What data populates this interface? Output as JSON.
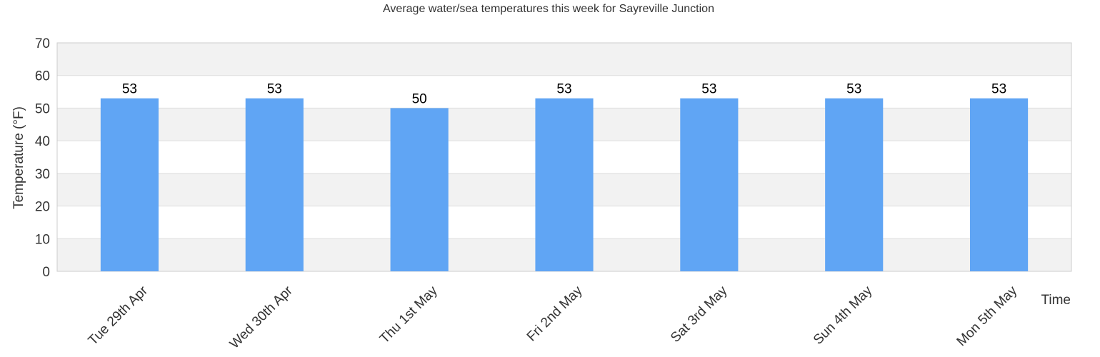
{
  "chart_data": {
    "type": "bar",
    "title": "Average water/sea temperatures this week for Sayreville Junction",
    "xlabel": "Time",
    "ylabel": "Temperature (°F)",
    "categories": [
      "Tue 29th Apr",
      "Wed 30th Apr",
      "Thu 1st May",
      "Fri 2nd May",
      "Sat 3rd May",
      "Sun 4th May",
      "Mon 5th May"
    ],
    "values": [
      53,
      53,
      50,
      53,
      53,
      53,
      53
    ],
    "ylim": [
      0,
      70
    ],
    "yticks": [
      0,
      10,
      20,
      30,
      40,
      50,
      60,
      70
    ],
    "grid": true,
    "alternating_bands": true,
    "colors": {
      "bar": "#60a5f4",
      "band": "#f2f2f2",
      "grid": "#dddddd",
      "axis": "#cccccc",
      "text": "#333333"
    }
  }
}
